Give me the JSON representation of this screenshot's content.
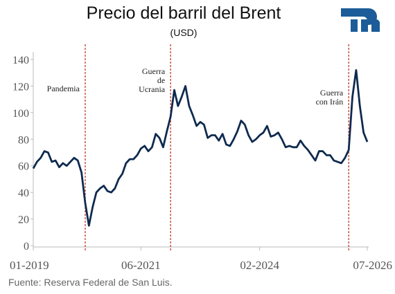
{
  "chart_data": {
    "type": "line",
    "title": "Precio del barril del Brent",
    "subtitle": "(USD)",
    "source": "Fuente: Reserva Federal de San Luis.",
    "color": "#0f2a4f",
    "event_color": "#c0392b",
    "x": [
      "2019-01",
      "2019-02",
      "2019-03",
      "2019-04",
      "2019-05",
      "2019-06",
      "2019-07",
      "2019-08",
      "2019-09",
      "2019-10",
      "2019-11",
      "2019-12",
      "2020-01",
      "2020-02",
      "2020-03",
      "2020-04",
      "2020-05",
      "2020-06",
      "2020-07",
      "2020-08",
      "2020-09",
      "2020-10",
      "2020-11",
      "2020-12",
      "2021-01",
      "2021-02",
      "2021-03",
      "2021-04",
      "2021-05",
      "2021-06",
      "2021-07",
      "2021-08",
      "2021-09",
      "2021-10",
      "2021-11",
      "2021-12",
      "2022-01",
      "2022-02",
      "2022-03",
      "2022-04",
      "2022-05",
      "2022-06",
      "2022-07",
      "2022-08",
      "2022-09",
      "2022-10",
      "2022-11",
      "2022-12",
      "2023-01",
      "2023-02",
      "2023-03",
      "2023-04",
      "2023-05",
      "2023-06",
      "2023-07",
      "2023-08",
      "2023-09",
      "2023-10",
      "2023-11",
      "2023-12",
      "2024-01",
      "2024-02",
      "2024-03",
      "2024-04",
      "2024-05",
      "2024-06",
      "2024-07",
      "2024-08",
      "2024-09",
      "2024-10",
      "2024-11",
      "2024-12",
      "2025-01",
      "2025-02",
      "2025-03",
      "2025-04",
      "2025-05",
      "2025-06",
      "2025-07",
      "2025-08",
      "2025-09",
      "2025-10",
      "2025-11",
      "2025-12",
      "2026-01",
      "2026-02",
      "2026-03",
      "2026-04",
      "2026-05",
      "2026-06",
      "2026-07"
    ],
    "values": [
      58,
      63,
      66,
      71,
      70,
      63,
      64,
      59,
      62,
      60,
      63,
      66,
      64,
      55,
      32,
      15,
      29,
      40,
      43,
      45,
      41,
      40,
      43,
      50,
      54,
      62,
      65,
      65,
      68,
      73,
      75,
      71,
      74,
      84,
      81,
      74,
      86,
      97,
      117,
      105,
      112,
      120,
      105,
      98,
      90,
      93,
      91,
      81,
      83,
      83,
      79,
      84,
      76,
      75,
      80,
      86,
      94,
      91,
      83,
      78,
      80,
      83,
      85,
      90,
      82,
      83,
      85,
      80,
      74,
      75,
      74,
      74,
      79,
      75,
      72,
      68,
      64,
      71,
      71,
      68,
      68,
      64,
      63,
      62,
      66,
      72,
      112,
      132,
      105,
      85,
      78
    ],
    "xlim": [
      "2019-01",
      "2026-07"
    ],
    "xticks": [
      {
        "value": "2019-01",
        "label": "01-2019"
      },
      {
        "value": "2021-06",
        "label": "06-2021"
      },
      {
        "value": "2024-02",
        "label": "02-2024"
      },
      {
        "value": "2026-07",
        "label": "07-2026"
      }
    ],
    "ylim": [
      0,
      140
    ],
    "yticks": [
      0,
      20,
      40,
      60,
      80,
      100,
      120,
      140
    ],
    "grid": false,
    "events": [
      {
        "x": "2020-03",
        "label": [
          "Pandemia"
        ]
      },
      {
        "x": "2022-02",
        "label": [
          "Guerra",
          "de",
          "Ucrania"
        ]
      },
      {
        "x": "2026-02",
        "label": [
          "Guerra",
          "con Irán"
        ]
      }
    ]
  }
}
